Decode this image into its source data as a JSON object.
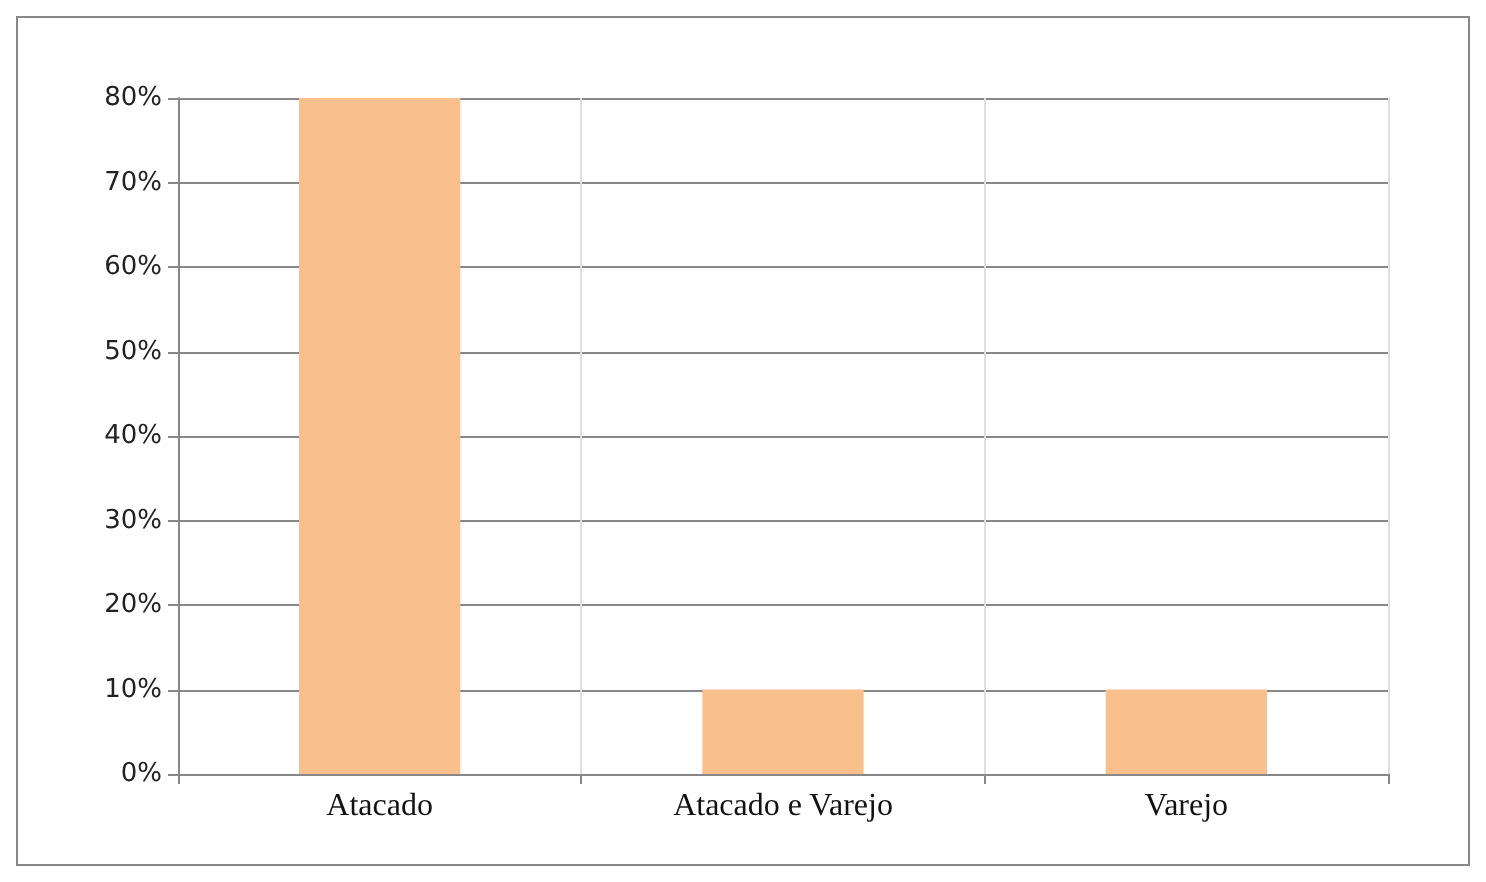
{
  "chart_data": {
    "type": "bar",
    "categories": [
      "Atacado",
      "Atacado e Varejo",
      "Varejo"
    ],
    "values": [
      80,
      10,
      10
    ],
    "color": "#f9c08e",
    "ylim": [
      0,
      80
    ],
    "yticks": [
      {
        "value": 0,
        "label": "0%"
      },
      {
        "value": 10,
        "label": "10%"
      },
      {
        "value": 20,
        "label": "20%"
      },
      {
        "value": 30,
        "label": "30%"
      },
      {
        "value": 40,
        "label": "40%"
      },
      {
        "value": 50,
        "label": "50%"
      },
      {
        "value": 60,
        "label": "60%"
      },
      {
        "value": 70,
        "label": "70%"
      },
      {
        "value": 80,
        "label": "80%"
      }
    ],
    "grid": true
  }
}
